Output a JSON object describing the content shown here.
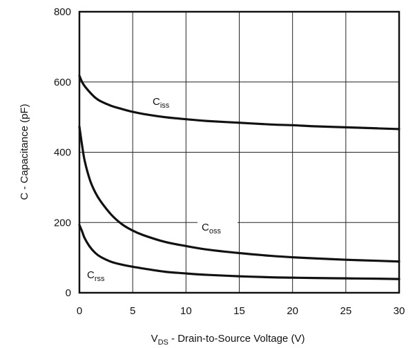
{
  "chart_data": {
    "type": "line",
    "xlabel": {
      "main": "V",
      "sub": "DS",
      "rest": " - Drain-to-Source Voltage (V)"
    },
    "ylabel": "C - Capacitance (pF)",
    "xlim": [
      0,
      30
    ],
    "ylim": [
      0,
      800
    ],
    "xticks": [
      "0",
      "5",
      "10",
      "15",
      "20",
      "25",
      "30"
    ],
    "yticks": [
      "0",
      "200",
      "400",
      "600",
      "800"
    ],
    "xtick_values": [
      0,
      5,
      10,
      15,
      20,
      25,
      30
    ],
    "ytick_values": [
      0,
      200,
      400,
      600,
      800
    ],
    "grid": true,
    "series": [
      {
        "name": "Ciss",
        "label": {
          "main": "C",
          "sub": "iss"
        },
        "color": "#111111",
        "x": [
          0,
          0.25,
          0.5,
          1,
          1.5,
          2,
          3,
          4,
          5,
          6,
          8,
          10,
          12,
          15,
          18,
          20,
          22,
          25,
          28,
          30
        ],
        "y": [
          618,
          600,
          588,
          570,
          555,
          545,
          532,
          523,
          515,
          509,
          500,
          494,
          489,
          484,
          479,
          477,
          474,
          471,
          468,
          466
        ]
      },
      {
        "name": "Coss",
        "label": {
          "main": "C",
          "sub": "oss"
        },
        "color": "#111111",
        "x": [
          0,
          0.25,
          0.5,
          1,
          1.5,
          2,
          3,
          4,
          5,
          6,
          8,
          10,
          12,
          15,
          18,
          20,
          22,
          25,
          28,
          30
        ],
        "y": [
          473,
          420,
          375,
          320,
          285,
          260,
          222,
          195,
          177,
          164,
          145,
          133,
          123,
          113,
          105,
          101,
          98,
          94,
          91,
          89
        ]
      },
      {
        "name": "Crss",
        "label": {
          "main": "C",
          "sub": "rss"
        },
        "color": "#111111",
        "x": [
          0,
          0.25,
          0.5,
          1,
          1.5,
          2,
          3,
          4,
          5,
          6,
          8,
          10,
          12,
          15,
          18,
          20,
          22,
          25,
          28,
          30
        ],
        "y": [
          193,
          175,
          155,
          130,
          113,
          102,
          88,
          80,
          74,
          69,
          60,
          55,
          51,
          47,
          44,
          43,
          42,
          41,
          40,
          39
        ]
      }
    ]
  }
}
